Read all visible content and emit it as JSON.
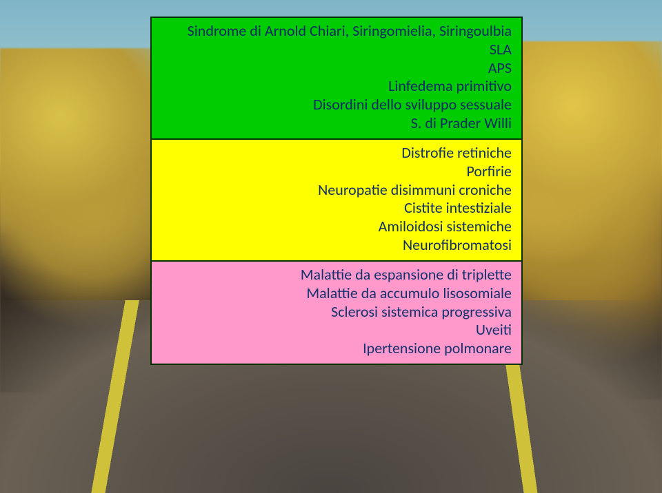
{
  "panel": {
    "green": {
      "lines": [
        "Sindrome di Arnold Chiari, Siringomielia, Siringoulbia",
        "SLA",
        "APS",
        "Linfedema primitivo",
        "Disordini dello sviluppo sessuale",
        "S. di Prader Willi"
      ],
      "bg": "#00cc00"
    },
    "yellow": {
      "lines": [
        "Distrofie retiniche",
        "Porfirie",
        "Neuropatie disimmuni croniche",
        "Cistite intestiziale",
        "Amiloidosi sistemiche",
        "Neurofibromatosi"
      ],
      "bg": "#ffff00"
    },
    "pink": {
      "lines": [
        "Malattie da espansione di triplette",
        "Malattie da accumulo lisosomiale",
        "Sclerosi sistemica progressiva",
        "Uveiti",
        "Ipertensione polmonare"
      ],
      "bg": "#ff99cc"
    },
    "border_color": "#003300",
    "text_color": "#163a7a",
    "fontsize": 22
  },
  "background": {
    "sky": "#7fb5c8",
    "foliage_top": "#c9ad3e",
    "foliage_mid": "#8a6f3a",
    "road": "#4a4440",
    "road_line": "#cfc23a"
  }
}
